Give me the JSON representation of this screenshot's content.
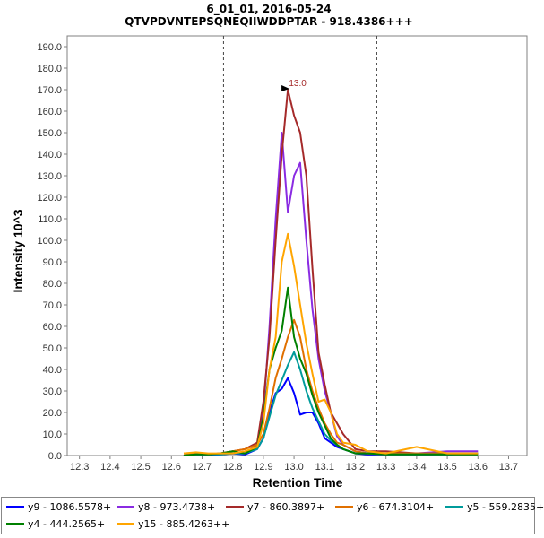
{
  "header": {
    "line1": "6_01_01, 2016-05-24",
    "line2": "QTVPDVNTEPSQNEQIIWDDPTAR - 918.4386+++"
  },
  "chart_data": {
    "type": "line",
    "xlabel": "Retention Time",
    "ylabel": "Intensity 10^3",
    "xlim": [
      12.26,
      13.76
    ],
    "ylim": [
      0,
      195
    ],
    "xticks": [
      "12.3",
      "12.4",
      "12.5",
      "12.6",
      "12.7",
      "12.8",
      "12.9",
      "13.0",
      "13.1",
      "13.2",
      "13.3",
      "13.4",
      "13.5",
      "13.6",
      "13.7"
    ],
    "yticks": [
      "0.0",
      "10.0",
      "20.0",
      "30.0",
      "40.0",
      "50.0",
      "60.0",
      "70.0",
      "80.0",
      "90.0",
      "100.0",
      "110.0",
      "120.0",
      "130.0",
      "140.0",
      "150.0",
      "160.0",
      "170.0",
      "180.0",
      "190.0"
    ],
    "integration_bounds": [
      12.77,
      13.27
    ],
    "peak_annotation": {
      "x": 13.0,
      "y": 170,
      "label": "13.0"
    },
    "series": [
      {
        "name": "y9 - 1086.5578+",
        "color": "#0000ff",
        "x": [
          12.64,
          12.68,
          12.72,
          12.76,
          12.8,
          12.84,
          12.88,
          12.9,
          12.92,
          12.94,
          12.96,
          12.98,
          13.0,
          13.02,
          13.04,
          13.06,
          13.08,
          13.1,
          13.12,
          13.14,
          13.16,
          13.2,
          13.24,
          13.3,
          13.4,
          13.5,
          13.6
        ],
        "y": [
          0,
          0.5,
          0,
          0.5,
          1,
          0.5,
          3,
          8,
          20,
          29,
          31,
          36,
          29,
          19,
          20,
          20,
          15,
          8,
          6,
          4,
          3,
          1,
          0.5,
          0.5,
          0.5,
          0.5,
          1
        ]
      },
      {
        "name": "y8 - 973.4738+",
        "color": "#8a2be2",
        "x": [
          12.64,
          12.68,
          12.72,
          12.76,
          12.8,
          12.84,
          12.88,
          12.9,
          12.92,
          12.94,
          12.96,
          12.98,
          13.0,
          13.02,
          13.04,
          13.06,
          13.08,
          13.1,
          13.12,
          13.14,
          13.16,
          13.2,
          13.24,
          13.3,
          13.4,
          13.5,
          13.6
        ],
        "y": [
          0,
          0.5,
          0.5,
          1,
          1,
          1,
          5,
          20,
          60,
          110,
          150,
          113,
          130,
          136,
          100,
          68,
          45,
          30,
          20,
          9,
          5,
          2,
          1,
          1,
          1,
          2,
          2
        ]
      },
      {
        "name": "y7 - 860.3897+",
        "color": "#a52a2a",
        "x": [
          12.64,
          12.68,
          12.72,
          12.76,
          12.8,
          12.84,
          12.88,
          12.9,
          12.92,
          12.94,
          12.96,
          12.98,
          13.0,
          13.02,
          13.04,
          13.06,
          13.08,
          13.1,
          13.12,
          13.14,
          13.16,
          13.2,
          13.24,
          13.3,
          13.4,
          13.5,
          13.6
        ],
        "y": [
          0,
          1,
          0.5,
          1,
          2,
          3,
          6,
          25,
          55,
          100,
          140,
          170,
          158,
          150,
          130,
          87,
          48,
          33,
          20,
          15,
          10,
          3,
          2,
          2,
          1,
          1,
          1
        ]
      },
      {
        "name": "y6 - 674.3104+",
        "color": "#e07000",
        "x": [
          12.64,
          12.68,
          12.72,
          12.76,
          12.8,
          12.84,
          12.88,
          12.9,
          12.92,
          12.94,
          12.96,
          12.98,
          13.0,
          13.02,
          13.04,
          13.06,
          13.08,
          13.1,
          13.12,
          13.14,
          13.16,
          13.2,
          13.24,
          13.3,
          13.4,
          13.5,
          13.6
        ],
        "y": [
          1,
          1,
          0.5,
          1,
          2,
          3,
          5,
          10,
          22,
          36,
          45,
          55,
          63,
          55,
          40,
          30,
          22,
          15,
          10,
          6,
          5,
          2,
          1,
          1,
          1,
          1,
          1
        ]
      },
      {
        "name": "y5 - 559.2835+",
        "color": "#009b9b",
        "x": [
          12.64,
          12.68,
          12.72,
          12.76,
          12.8,
          12.84,
          12.88,
          12.9,
          12.92,
          12.94,
          12.96,
          12.98,
          13.0,
          13.02,
          13.04,
          13.06,
          13.08,
          13.1,
          13.12,
          13.14,
          13.16,
          13.2,
          13.24,
          13.3,
          13.4,
          13.5,
          13.6
        ],
        "y": [
          0,
          0.5,
          0.5,
          0.5,
          1,
          1,
          3,
          8,
          18,
          28,
          35,
          42,
          48,
          40,
          30,
          22,
          16,
          10,
          7,
          5,
          3,
          1,
          1,
          0.5,
          0.5,
          0.5,
          1
        ]
      },
      {
        "name": "y4 - 444.2565+",
        "color": "#008000",
        "x": [
          12.64,
          12.68,
          12.72,
          12.76,
          12.8,
          12.84,
          12.88,
          12.9,
          12.92,
          12.94,
          12.96,
          12.98,
          13.0,
          13.02,
          13.04,
          13.06,
          13.08,
          13.1,
          13.12,
          13.14,
          13.16,
          13.2,
          13.24,
          13.3,
          13.4,
          13.5,
          13.6
        ],
        "y": [
          0,
          0.5,
          0.5,
          1,
          2,
          1,
          4,
          18,
          40,
          50,
          58,
          78,
          55,
          45,
          38,
          28,
          20,
          14,
          8,
          5,
          3,
          1,
          1,
          0.5,
          0.5,
          0.5,
          0.5
        ]
      },
      {
        "name": "y15 - 885.4263++",
        "color": "#ffa500",
        "x": [
          12.64,
          12.68,
          12.72,
          12.76,
          12.8,
          12.84,
          12.88,
          12.9,
          12.92,
          12.94,
          12.96,
          12.98,
          13.0,
          13.02,
          13.04,
          13.06,
          13.08,
          13.1,
          13.12,
          13.14,
          13.16,
          13.2,
          13.24,
          13.3,
          13.4,
          13.5,
          13.6
        ],
        "y": [
          1,
          1.5,
          1,
          1,
          1,
          2,
          4,
          15,
          40,
          55,
          90,
          103,
          88,
          70,
          52,
          38,
          25,
          26,
          20,
          10,
          6,
          5,
          2,
          1,
          4,
          1,
          1
        ]
      }
    ]
  }
}
